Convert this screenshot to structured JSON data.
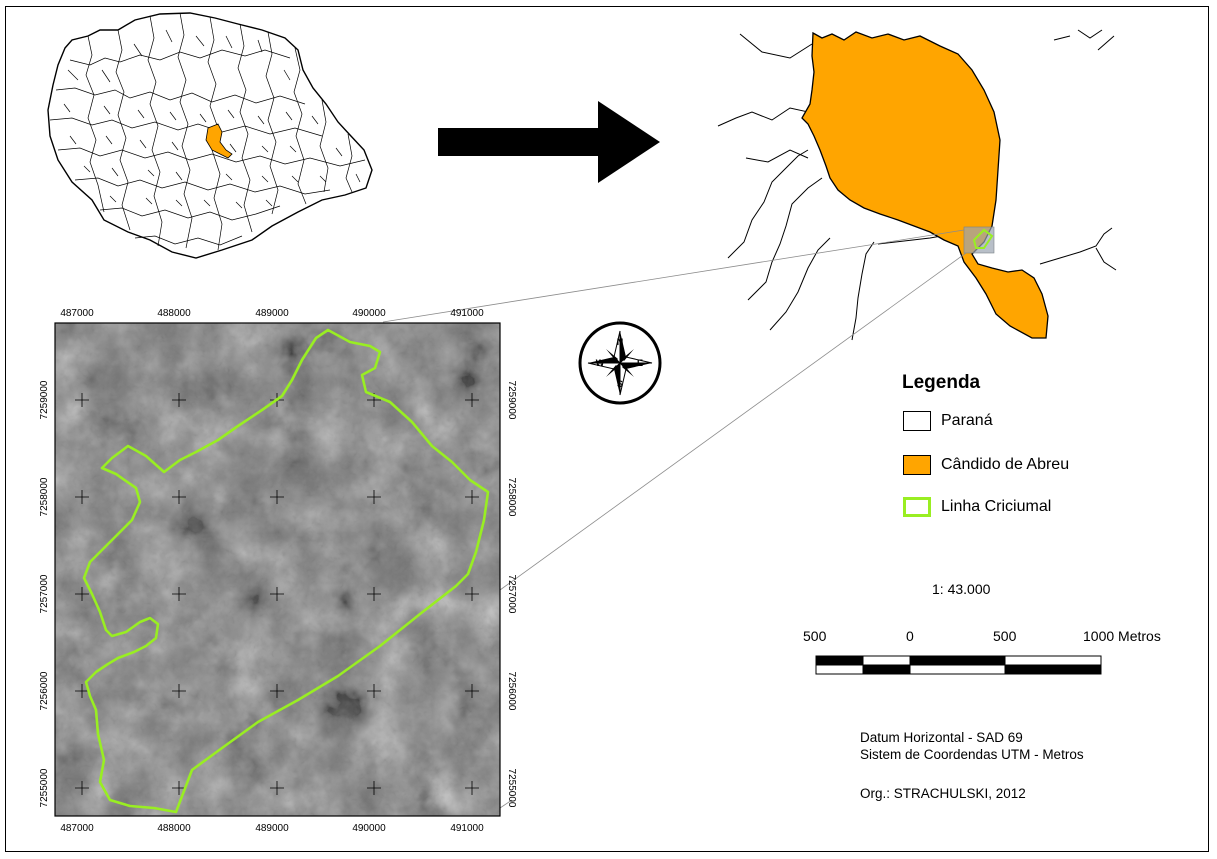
{
  "colors": {
    "candido_de_abreu": "#FFA500",
    "linha_criciumal": "#99EE22",
    "parana": "#FFFFFF",
    "boundary": "#000000"
  },
  "legend": {
    "title": "Legenda",
    "items": [
      {
        "label": "Paraná",
        "swatch": "white-fill"
      },
      {
        "label": "Cândido de Abreu",
        "swatch": "orange-fill"
      },
      {
        "label": "Linha Criciumal",
        "swatch": "green-outline"
      }
    ]
  },
  "scale": {
    "ratio": "1: 43.000",
    "ticks": [
      "500",
      "0",
      "500",
      "1000 Metros"
    ]
  },
  "credits": {
    "datum": "Datum Horizontal - SAD 69",
    "coord_system": "Sistem de Coordendas UTM - Metros",
    "org": "Org.: STRACHULSKI, 2012"
  },
  "north_arrow": {
    "labels": [
      "N",
      "S",
      "E",
      "W"
    ]
  },
  "locator_arrow_icon": "right-arrow-icon",
  "satellite_grid": {
    "x_ticks": [
      "487000",
      "488000",
      "489000",
      "490000",
      "491000"
    ],
    "y_ticks": [
      "7259000",
      "7258000",
      "7257000",
      "7256000",
      "7255000"
    ]
  }
}
